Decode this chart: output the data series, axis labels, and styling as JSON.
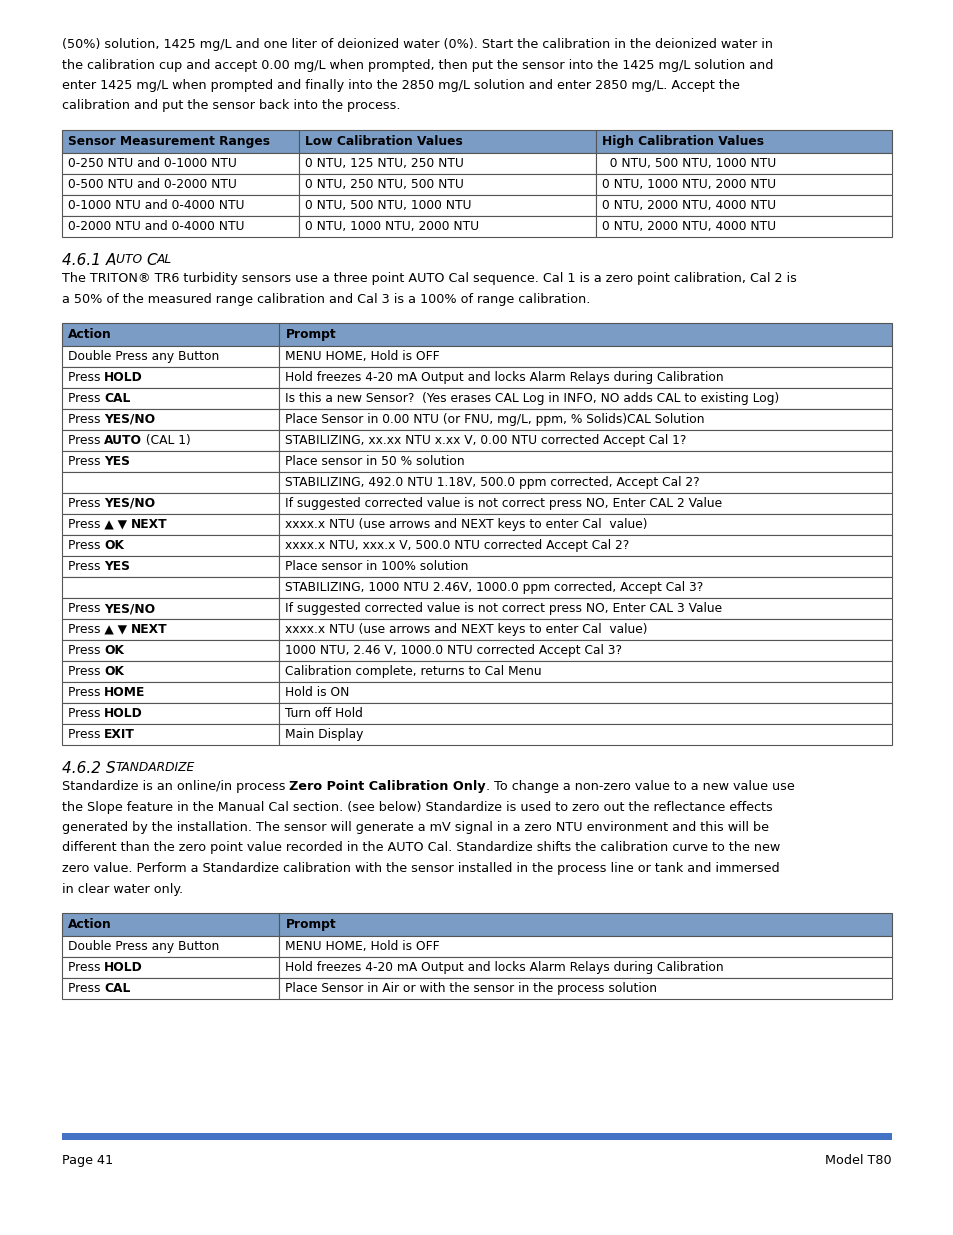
{
  "background_color": "#ffffff",
  "header_color": "#7a9cc5",
  "table_border_color": "#555555",
  "text_color": "#000000",
  "footer_bar_color": "#4472c4",
  "font_size_body": 9.2,
  "font_size_table": 8.8,
  "font_size_heading": 11.0,
  "intro_text": "(50%) solution, 1425 mg/L and one liter of deionized water (0%). Start the calibration in the deionized water in\nthe calibration cup and accept 0.00 mg/L when prompted, then put the sensor into the 1425 mg/L solution and\nenter 1425 mg/L when prompted and finally into the 2850 mg/L solution and enter 2850 mg/L. Accept the\ncalibration and put the sensor back into the process.",
  "table1_headers": [
    "Sensor Measurement Ranges",
    "Low Calibration Values",
    "High Calibration Values"
  ],
  "table1_col_bold": [
    true,
    true,
    true
  ],
  "table1_rows": [
    [
      "0-250 NTU and 0-1000 NTU",
      "0 NTU, 125 NTU, 250 NTU",
      "  0 NTU, 500 NTU, 1000 NTU"
    ],
    [
      "0-500 NTU and 0-2000 NTU",
      "0 NTU, 250 NTU, 500 NTU",
      "0 NTU, 1000 NTU, 2000 NTU"
    ],
    [
      "0-1000 NTU and 0-4000 NTU",
      "0 NTU, 500 NTU, 1000 NTU",
      "0 NTU, 2000 NTU, 4000 NTU"
    ],
    [
      "0-2000 NTU and 0-4000 NTU",
      "0 NTU, 1000 NTU, 2000 NTU",
      "0 NTU, 2000 NTU, 4000 NTU"
    ]
  ],
  "section1_text": "The TRITON® TR6 turbidity sensors use a three point AUTO Cal sequence. Cal 1 is a zero point calibration, Cal 2 is\na 50% of the measured range calibration and Cal 3 is a 100% of range calibration.",
  "table2_headers": [
    "Action",
    "Prompt"
  ],
  "table2_rows": [
    [
      "Double Press any Button",
      "MENU HOME, Hold is OFF"
    ],
    [
      "Press ^^HOLD^^",
      "Hold freezes 4-20 mA Output and locks Alarm Relays during Calibration"
    ],
    [
      "Press ^^CAL^^",
      "Is this a new Sensor?  (Yes erases CAL Log in INFO, NO adds CAL to existing Log)"
    ],
    [
      "Press ^^YES/NO^^",
      "Place Sensor in 0.00 NTU (or FNU, mg/L, ppm, % Solids)CAL Solution"
    ],
    [
      "Press ^^AUTO^^ (CAL 1)",
      "STABILIZING, xx.xx NTU x.xx V, 0.00 NTU corrected Accept Cal 1?"
    ],
    [
      "Press ^^YES^^",
      "Place sensor in 50 % solution"
    ],
    [
      "",
      "STABILIZING, 492.0 NTU 1.18V, 500.0 ppm corrected, Accept Cal 2?"
    ],
    [
      "Press ^^YES/NO^^",
      "If suggested corrected value is not correct press NO, Enter CAL 2 Value"
    ],
    [
      "Press ▲ ▼ ^^NEXT^^",
      "xxxx.x NTU (use arrows and NEXT keys to enter Cal  value)"
    ],
    [
      "Press ^^OK^^",
      "xxxx.x NTU, xxx.x V, 500.0 NTU corrected Accept Cal 2?"
    ],
    [
      "Press ^^YES^^",
      "Place sensor in 100% solution"
    ],
    [
      "",
      "STABILIZING, 1000 NTU 2.46V, 1000.0 ppm corrected, Accept Cal 3?"
    ],
    [
      "Press ^^YES/NO^^",
      "If suggested corrected value is not correct press NO, Enter CAL 3 Value"
    ],
    [
      "Press ▲ ▼ ^^NEXT^^",
      "xxxx.x NTU (use arrows and NEXT keys to enter Cal  value)"
    ],
    [
      "Press ^^OK^^",
      "1000 NTU, 2.46 V, 1000.0 NTU corrected Accept Cal 3?"
    ],
    [
      "Press ^^OK^^",
      "Calibration complete, returns to Cal Menu"
    ],
    [
      "Press ^^HOME^^",
      "Hold is ON"
    ],
    [
      "Press ^^HOLD^^",
      "Turn off Hold"
    ],
    [
      "Press ^^EXIT^^",
      "Main Display"
    ]
  ],
  "section2_text_parts": [
    {
      "text": "Standardize is an online/in process ",
      "bold": false
    },
    {
      "text": "Zero Point Calibration Only",
      "bold": true
    },
    {
      "text": ". To change a non-zero value to a new value use\nthe Slope feature in the Manual Cal section. (see below) Standardize is used to zero out the reflectance effects\ngenerated by the installation. The sensor will generate a mV signal in a zero NTU environment and this will be\ndifferent than the zero point value recorded in the AUTO Cal. Standardize shifts the calibration curve to the new\nzero value. Perform a Standardize calibration with the sensor installed in the process line or tank and immersed\nin clear water only.",
      "bold": false
    }
  ],
  "table3_headers": [
    "Action",
    "Prompt"
  ],
  "table3_rows": [
    [
      "Double Press any Button",
      "MENU HOME, Hold is OFF"
    ],
    [
      "Press ^^HOLD^^",
      "Hold freezes 4-20 mA Output and locks Alarm Relays during Calibration"
    ],
    [
      "Press ^^CAL^^",
      "Place Sensor in Air or with the sensor in the process solution"
    ]
  ],
  "footer_text_left": "Page 41",
  "footer_text_right": "Model T80"
}
